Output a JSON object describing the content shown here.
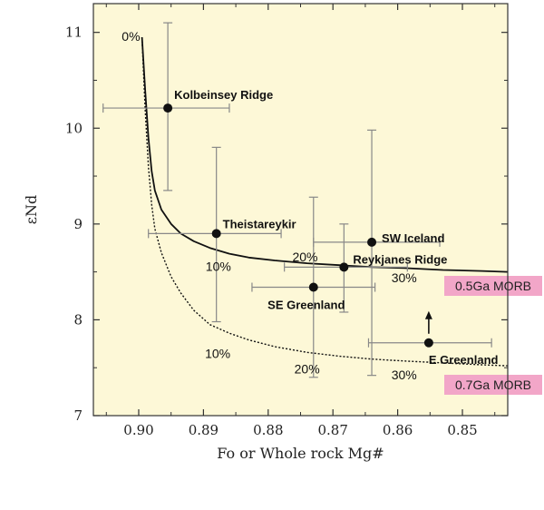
{
  "chart_data": {
    "type": "scatter",
    "xlabel": "Fo or Whole rock Mg#",
    "ylabel": "εNd",
    "xlim": [
      0.907,
      0.843
    ],
    "ylim": [
      7,
      11.3
    ],
    "x_ticks": [
      0.9,
      0.89,
      0.88,
      0.87,
      0.86,
      0.85
    ],
    "x_tick_labels": [
      "0.90",
      "0.89",
      "0.88",
      "0.87",
      "0.86",
      "0.85"
    ],
    "y_ticks": [
      7,
      8,
      9,
      10,
      11
    ],
    "y_tick_labels": [
      "7",
      "8",
      "9",
      "10",
      "11"
    ],
    "points": [
      {
        "label": "Kolbeinsey Ridge",
        "x": 0.8955,
        "y": 10.21,
        "xerr": [
          0.9055,
          0.886
        ],
        "yerr": [
          9.35,
          11.1
        ]
      },
      {
        "label": "Theistareykir",
        "x": 0.888,
        "y": 8.9,
        "xerr": [
          0.8985,
          0.878
        ],
        "yerr": [
          7.98,
          9.8
        ]
      },
      {
        "label": "SW Iceland",
        "x": 0.864,
        "y": 8.81,
        "xerr": [
          0.873,
          0.8535
        ],
        "yerr": [
          7.42,
          9.98
        ]
      },
      {
        "label": "Reykjanes Ridge",
        "x": 0.8683,
        "y": 8.55,
        "xerr": [
          0.8775,
          0.8585
        ],
        "yerr": [
          8.08,
          9.0
        ]
      },
      {
        "label": "SE Greenland",
        "x": 0.873,
        "y": 8.34,
        "xerr": [
          0.8825,
          0.8635
        ],
        "yerr": [
          7.4,
          9.28
        ]
      },
      {
        "label": "E Greenland",
        "x": 0.8552,
        "y": 7.76,
        "xerr": [
          0.8645,
          0.8455
        ],
        "yerr": [
          7.76,
          7.76
        ],
        "arrow_up": true
      }
    ],
    "curves": [
      {
        "name": "0.5Ga MORB",
        "style": "solid",
        "x": [
          0.8995,
          0.899,
          0.8985,
          0.898,
          0.8975,
          0.8965,
          0.895,
          0.8935,
          0.8915,
          0.889,
          0.886,
          0.883,
          0.879,
          0.874,
          0.869,
          0.864,
          0.859,
          0.853,
          0.847,
          0.843
        ],
        "y": [
          10.95,
          10.4,
          9.9,
          9.55,
          9.35,
          9.15,
          9.0,
          8.9,
          8.82,
          8.75,
          8.69,
          8.65,
          8.62,
          8.59,
          8.57,
          8.55,
          8.54,
          8.52,
          8.51,
          8.5
        ]
      },
      {
        "name": "0.7Ga MORB",
        "style": "dotted",
        "x": [
          0.8995,
          0.899,
          0.8985,
          0.898,
          0.8975,
          0.8965,
          0.895,
          0.8935,
          0.8915,
          0.889,
          0.886,
          0.883,
          0.879,
          0.874,
          0.869,
          0.864,
          0.859,
          0.853,
          0.847,
          0.843
        ],
        "y": [
          10.95,
          10.2,
          9.6,
          9.2,
          8.95,
          8.7,
          8.45,
          8.28,
          8.1,
          7.95,
          7.86,
          7.79,
          7.72,
          7.66,
          7.62,
          7.59,
          7.57,
          7.55,
          7.53,
          7.52
        ]
      }
    ],
    "percent_labels": [
      {
        "text": "0%",
        "x": 0.9012,
        "y": 10.91
      },
      {
        "text": "10%",
        "x": 0.8877,
        "y": 8.51
      },
      {
        "text": "20%",
        "x": 0.8743,
        "y": 8.61
      },
      {
        "text": "30%",
        "x": 0.859,
        "y": 8.39
      },
      {
        "text": "10%",
        "x": 0.8878,
        "y": 7.6
      },
      {
        "text": "20%",
        "x": 0.874,
        "y": 7.44
      },
      {
        "text": "30%",
        "x": 0.859,
        "y": 7.38
      }
    ],
    "curve_labels": [
      {
        "text": "0.5Ga MORB",
        "color": "#f2a6c8"
      },
      {
        "text": "0.7Ga MORB",
        "color": "#f2a6c8"
      }
    ],
    "colors": {
      "plot_background": "#fdf8d7",
      "axis": "#333333",
      "error_bar": "#888888",
      "point": "#111111"
    }
  }
}
